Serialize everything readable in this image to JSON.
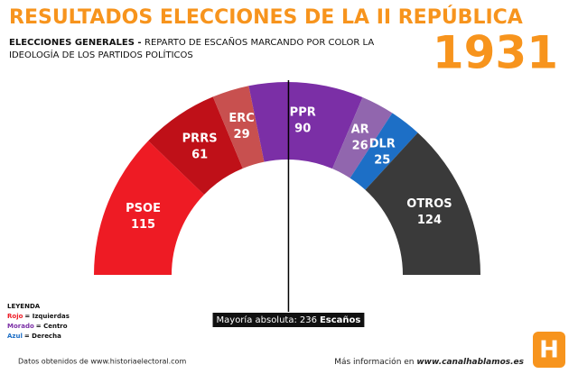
{
  "chart_data": {
    "type": "half-donut",
    "title": "RESULTADOS ELECCIONES DE LA II REPÚBLICA",
    "subtitle_bold": "ELECCIONES GENERALES - ",
    "subtitle": "REPARTO DE ESCAÑOS MARCANDO POR COLOR LA IDEOLOGÍA DE LOS PARTIDOS POLÍTICOS",
    "year": "1931",
    "categories": [
      "PSOE",
      "PRRS",
      "ERC",
      "PPR",
      "AR",
      "DLR",
      "OTROS"
    ],
    "values": [
      115,
      61,
      29,
      90,
      26,
      25,
      124
    ],
    "colors": [
      "#ee1b24",
      "#bf1018",
      "#c8504f",
      "#7b2fa6",
      "#9166ae",
      "#1d6fc6",
      "#3a3a3a"
    ],
    "majority": {
      "label": "Mayoría absoluta:",
      "value": 236,
      "unit": "Escaños"
    },
    "legend": {
      "title": "LEYENDA",
      "items": [
        {
          "name": "Rojo",
          "meaning": "= Izquierdas",
          "color": "#ee1b24"
        },
        {
          "name": "Morado",
          "meaning": "= Centro",
          "color": "#7b2fa6"
        },
        {
          "name": "Azul",
          "meaning": "= Derecha",
          "color": "#1d6fc6"
        }
      ]
    },
    "source": "Datos obtenidos de www.historiaelectoral.com",
    "more_info": "Más información en ",
    "website": "www.canalhablamos.es",
    "logo": "H"
  }
}
